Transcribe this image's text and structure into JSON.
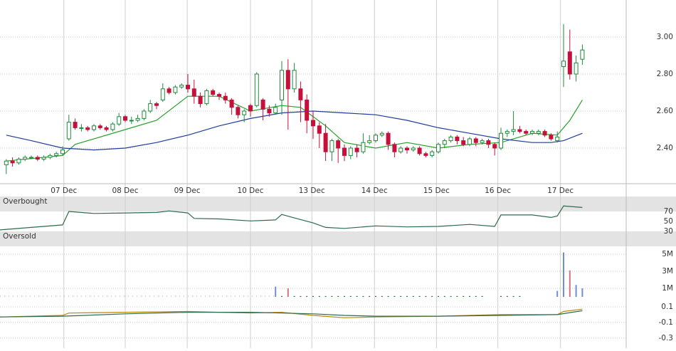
{
  "chart_data": [
    {
      "type": "candlestick",
      "x": [
        1,
        2,
        3,
        4,
        5,
        6,
        7,
        8,
        9,
        10,
        11,
        12,
        13,
        14,
        15,
        16,
        17,
        18,
        19,
        20,
        21,
        22,
        23,
        24,
        25,
        26,
        27,
        28,
        29,
        30,
        31,
        32,
        33,
        34,
        35,
        36,
        37,
        38,
        39,
        40,
        41,
        42,
        43,
        44,
        45,
        46,
        47,
        48,
        49,
        50,
        51,
        52,
        53,
        54,
        55,
        56,
        57,
        58,
        59,
        60,
        61,
        62,
        63,
        64,
        65,
        66,
        67,
        68,
        69,
        70,
        71,
        72,
        73,
        74,
        75,
        76,
        77,
        78,
        79,
        80,
        81,
        82,
        83,
        84,
        85,
        86,
        87,
        88,
        89,
        90,
        91,
        92,
        93
      ],
      "open": [
        2.31,
        2.33,
        2.32,
        2.34,
        2.35,
        2.35,
        2.34,
        2.35,
        2.36,
        2.37,
        2.45,
        2.54,
        2.51,
        2.51,
        2.5,
        2.52,
        2.51,
        2.5,
        2.53,
        2.57,
        2.55,
        2.55,
        2.56,
        2.6,
        2.64,
        2.66,
        2.72,
        2.7,
        2.73,
        2.74,
        2.72,
        2.68,
        2.64,
        2.71,
        2.69,
        2.68,
        2.66,
        2.62,
        2.58,
        2.63,
        2.63,
        2.66,
        2.61,
        2.59,
        2.66,
        2.82,
        2.72,
        2.72,
        2.66,
        2.55,
        2.52,
        2.48,
        2.38,
        2.44,
        2.4,
        2.36,
        2.4,
        2.38,
        2.43,
        2.44,
        2.47,
        2.48,
        2.42,
        2.38,
        2.4,
        2.39,
        2.4,
        2.37,
        2.36,
        2.38,
        2.42,
        2.44,
        2.46,
        2.44,
        2.42,
        2.45,
        2.43,
        2.44,
        2.42,
        2.4,
        2.48,
        2.49,
        2.5,
        2.49,
        2.48,
        2.48,
        2.49,
        2.47,
        2.44,
        2.84,
        2.92,
        2.8,
        2.88
      ],
      "high": [
        2.34,
        2.35,
        2.35,
        2.36,
        2.36,
        2.36,
        2.36,
        2.37,
        2.38,
        2.41,
        2.58,
        2.56,
        2.53,
        2.52,
        2.53,
        2.53,
        2.52,
        2.54,
        2.59,
        2.58,
        2.57,
        2.58,
        2.61,
        2.66,
        2.65,
        2.75,
        2.73,
        2.74,
        2.75,
        2.8,
        2.77,
        2.7,
        2.72,
        2.72,
        2.7,
        2.7,
        2.67,
        2.63,
        2.61,
        2.64,
        2.81,
        2.67,
        2.63,
        2.64,
        2.87,
        2.88,
        2.86,
        2.76,
        2.69,
        2.6,
        2.54,
        2.53,
        2.45,
        2.45,
        2.42,
        2.41,
        2.42,
        2.48,
        2.47,
        2.48,
        2.49,
        2.49,
        2.43,
        2.41,
        2.41,
        2.41,
        2.41,
        2.38,
        2.39,
        2.43,
        2.45,
        2.47,
        2.47,
        2.46,
        2.46,
        2.46,
        2.45,
        2.45,
        2.43,
        2.51,
        2.5,
        2.6,
        2.52,
        2.5,
        2.5,
        2.5,
        2.5,
        2.48,
        2.49,
        3.07,
        3.04,
        2.9,
        2.96
      ],
      "low": [
        2.26,
        2.3,
        2.31,
        2.33,
        2.34,
        2.33,
        2.33,
        2.34,
        2.35,
        2.36,
        2.44,
        2.5,
        2.49,
        2.49,
        2.49,
        2.5,
        2.49,
        2.49,
        2.52,
        2.54,
        2.53,
        2.54,
        2.55,
        2.59,
        2.61,
        2.65,
        2.69,
        2.69,
        2.72,
        2.7,
        2.64,
        2.62,
        2.63,
        2.68,
        2.66,
        2.64,
        2.58,
        2.56,
        2.54,
        2.57,
        2.62,
        2.55,
        2.57,
        2.58,
        2.58,
        2.5,
        2.7,
        2.54,
        2.48,
        2.45,
        2.4,
        2.33,
        2.33,
        2.32,
        2.33,
        2.34,
        2.35,
        2.37,
        2.42,
        2.43,
        2.46,
        2.39,
        2.35,
        2.37,
        2.37,
        2.38,
        2.36,
        2.35,
        2.35,
        2.37,
        2.4,
        2.43,
        2.42,
        2.41,
        2.41,
        2.41,
        2.42,
        2.4,
        2.36,
        2.39,
        2.46,
        2.47,
        2.48,
        2.47,
        2.47,
        2.47,
        2.46,
        2.44,
        2.43,
        2.73,
        2.77,
        2.76,
        2.85
      ],
      "close": [
        2.33,
        2.32,
        2.34,
        2.35,
        2.35,
        2.34,
        2.35,
        2.36,
        2.37,
        2.39,
        2.54,
        2.51,
        2.51,
        2.5,
        2.52,
        2.51,
        2.5,
        2.53,
        2.57,
        2.55,
        2.55,
        2.56,
        2.6,
        2.64,
        2.63,
        2.72,
        2.7,
        2.73,
        2.74,
        2.72,
        2.68,
        2.64,
        2.71,
        2.69,
        2.68,
        2.66,
        2.62,
        2.58,
        2.6,
        2.6,
        2.8,
        2.61,
        2.59,
        2.62,
        2.82,
        2.72,
        2.82,
        2.66,
        2.55,
        2.52,
        2.48,
        2.38,
        2.44,
        2.4,
        2.36,
        2.4,
        2.38,
        2.43,
        2.44,
        2.47,
        2.48,
        2.42,
        2.38,
        2.4,
        2.39,
        2.4,
        2.37,
        2.36,
        2.38,
        2.42,
        2.44,
        2.46,
        2.44,
        2.42,
        2.45,
        2.43,
        2.44,
        2.42,
        2.4,
        2.48,
        2.49,
        2.5,
        2.49,
        2.48,
        2.49,
        2.49,
        2.47,
        2.45,
        2.46,
        2.87,
        2.8,
        2.86,
        2.93
      ],
      "up_color": "#1f8a3a",
      "down_color": "#c4103a",
      "overlays": [
        {
          "color": "#2aa02a",
          "x": [
            1,
            10,
            12,
            20,
            25,
            30,
            35,
            40,
            45,
            48,
            52,
            55,
            60,
            65,
            70,
            75,
            80,
            85,
            89,
            91,
            93
          ],
          "values": [
            2.33,
            2.36,
            2.42,
            2.5,
            2.55,
            2.68,
            2.68,
            2.6,
            2.63,
            2.62,
            2.52,
            2.43,
            2.4,
            2.43,
            2.4,
            2.42,
            2.43,
            2.48,
            2.47,
            2.55,
            2.66
          ]
        },
        {
          "color": "#1f3d9a",
          "x": [
            1,
            5,
            10,
            15,
            20,
            25,
            30,
            35,
            40,
            45,
            50,
            55,
            60,
            65,
            70,
            75,
            80,
            85,
            88,
            90,
            93
          ],
          "values": [
            2.47,
            2.44,
            2.4,
            2.39,
            2.4,
            2.43,
            2.47,
            2.52,
            2.56,
            2.59,
            2.6,
            2.59,
            2.58,
            2.55,
            2.51,
            2.48,
            2.45,
            2.43,
            2.43,
            2.44,
            2.48
          ]
        }
      ],
      "xlim": [
        0,
        100
      ],
      "xticks": [
        {
          "value": 10.2,
          "label": "07 Dec"
        },
        {
          "value": 20,
          "label": "08 Dec"
        },
        {
          "value": 29.9,
          "label": "09 Dec"
        },
        {
          "value": 40,
          "label": "10 Dec"
        },
        {
          "value": 49.8,
          "label": "13 Dec"
        },
        {
          "value": 59.8,
          "label": "14 Dec"
        },
        {
          "value": 69.7,
          "label": "15 Dec"
        },
        {
          "value": 79.5,
          "label": "16 Dec"
        },
        {
          "value": 89.5,
          "label": "17 Dec"
        }
      ],
      "ylim": [
        2.2,
        3.2
      ],
      "yticks": [
        {
          "value": 3,
          "label": "3.00"
        },
        {
          "value": 2.8,
          "label": "2.80"
        },
        {
          "value": 2.6,
          "label": "2.60"
        },
        {
          "value": 2.4,
          "label": "2.40"
        }
      ],
      "grid": true
    },
    {
      "type": "line",
      "bands": [
        {
          "label": "Overbought",
          "range": [
            70,
            100
          ]
        },
        {
          "label": "Oversold",
          "range": [
            0,
            30
          ]
        }
      ],
      "color": "#2e6b4a",
      "x": [
        0,
        5,
        10,
        11,
        15,
        20,
        25,
        27,
        30,
        31,
        35,
        40,
        44,
        45,
        47,
        50,
        52,
        55,
        60,
        65,
        70,
        75,
        79,
        80,
        85,
        88,
        89,
        90,
        93
      ],
      "values": [
        33,
        38,
        43,
        70,
        66,
        67,
        68,
        71,
        67,
        56,
        55,
        51,
        53,
        64,
        57,
        47,
        38,
        36,
        41,
        39,
        40,
        44,
        40,
        63,
        63,
        58,
        61,
        81,
        78
      ],
      "xlim": [
        0,
        100
      ],
      "ylim": [
        0,
        100
      ],
      "yticks": [
        70,
        50,
        30
      ],
      "grid": false
    },
    {
      "type": "bar",
      "x": [
        44,
        45,
        46,
        47,
        48,
        49,
        50,
        51,
        52,
        53,
        54,
        55,
        56,
        57,
        58,
        59,
        60,
        61,
        62,
        63,
        64,
        65,
        66,
        67,
        68,
        69,
        70,
        71,
        72,
        73,
        74,
        75,
        76,
        77,
        80,
        81,
        82,
        83,
        89,
        90,
        91,
        92,
        93
      ],
      "values": [
        1200000,
        100000,
        1000000,
        100000,
        100000,
        100000,
        100000,
        100000,
        100000,
        100000,
        100000,
        100000,
        100000,
        100000,
        100000,
        100000,
        100000,
        100000,
        100000,
        100000,
        100000,
        100000,
        100000,
        100000,
        100000,
        100000,
        100000,
        100000,
        100000,
        100000,
        100000,
        100000,
        100000,
        100000,
        100000,
        100000,
        100000,
        100000,
        700000,
        5200000,
        3100000,
        1400000,
        1000000
      ],
      "colors": [
        "#6d8fd6",
        "#2e6b40",
        "#d9707e",
        "#2e6b40",
        "#2e6b40",
        "#2e6b40",
        "#2e6b40",
        "#2e6b40",
        "#2e6b40",
        "#2e6b40",
        "#2e6b40",
        "#2e6b40",
        "#2e6b40",
        "#2e6b40",
        "#2e6b40",
        "#2e6b40",
        "#2e6b40",
        "#2e6b40",
        "#2e6b40",
        "#2e6b40",
        "#2e6b40",
        "#2e6b40",
        "#2e6b40",
        "#2e6b40",
        "#2e6b40",
        "#2e6b40",
        "#2e6b40",
        "#2e6b40",
        "#2e6b40",
        "#2e6b40",
        "#2e6b40",
        "#2e6b40",
        "#2e6b40",
        "#2e6b40",
        "#2e6b40",
        "#2e6b40",
        "#2e6b40",
        "#2e6b40",
        "#6d8fd6",
        "#6d8fd6",
        "#d9707e",
        "#6d8fd6",
        "#6d8fd6"
      ],
      "xlim": [
        0,
        100
      ],
      "ylim": [
        0,
        5500000
      ],
      "yticks": [
        {
          "value": 5000000,
          "label": "5M"
        },
        {
          "value": 3000000,
          "label": "3M"
        },
        {
          "value": 1000000,
          "label": "1M"
        }
      ],
      "grid": true
    },
    {
      "type": "line",
      "series": [
        {
          "color": "#b8860b",
          "x": [
            0,
            10,
            11,
            20,
            30,
            40,
            45,
            50,
            55,
            60,
            70,
            80,
            89,
            90,
            93
          ],
          "values": [
            -0.03,
            -0.01,
            0.02,
            0.03,
            0.04,
            0.02,
            0.03,
            -0.01,
            -0.04,
            -0.03,
            -0.02,
            0,
            0,
            0.04,
            0.07
          ]
        },
        {
          "color": "#2e6b4a",
          "x": [
            0,
            10,
            20,
            30,
            40,
            50,
            55,
            60,
            70,
            80,
            89,
            93
          ],
          "values": [
            -0.03,
            -0.02,
            0.01,
            0.03,
            0.03,
            0.01,
            -0.01,
            -0.02,
            -0.02,
            -0.01,
            0,
            0.05
          ]
        }
      ],
      "xlim": [
        0,
        100
      ],
      "ylim": [
        -0.43,
        0.2
      ],
      "yticks": [
        0.1,
        -0.1,
        -0.3
      ],
      "grid": true
    }
  ]
}
